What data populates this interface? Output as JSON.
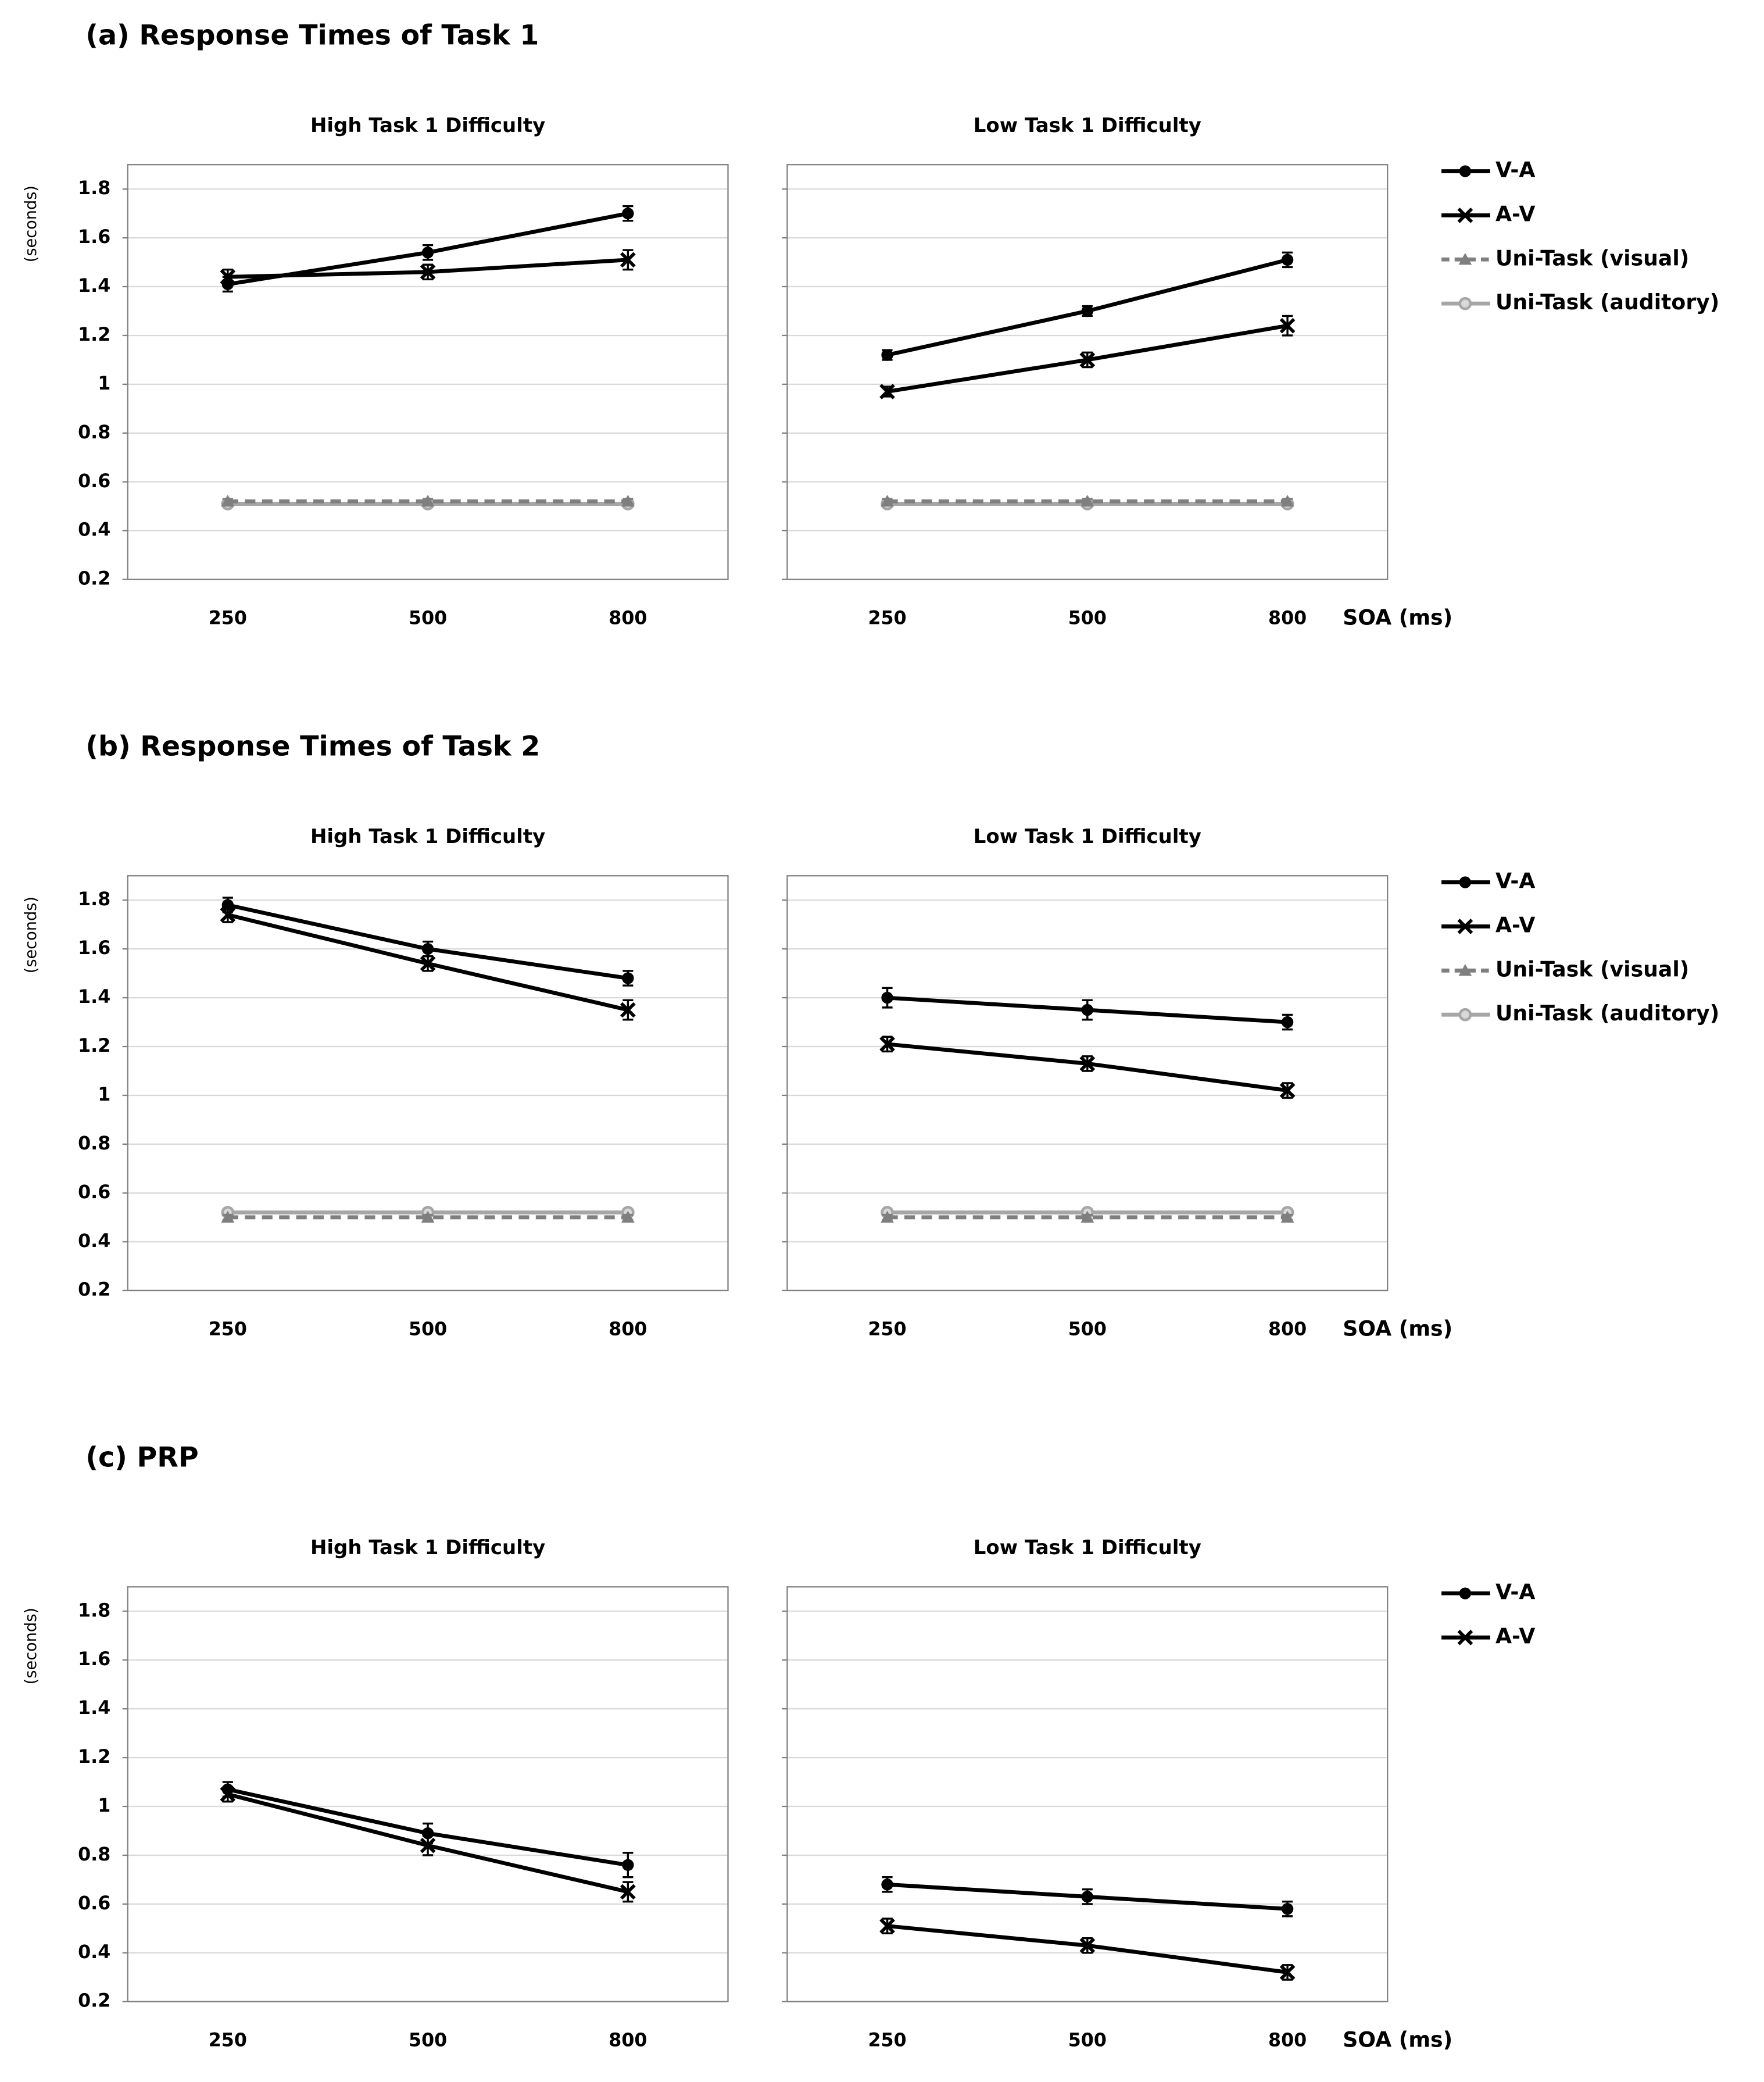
{
  "chart_data": [
    {
      "type": "line",
      "title": "(a) Response Times of Task 1",
      "xlabel": "SOA (ms)",
      "ylabel": "(seconds)",
      "categories": [
        "250",
        "500",
        "800"
      ],
      "ylim": [
        0.2,
        1.9
      ],
      "yticks": [
        0.2,
        0.4,
        0.6,
        0.8,
        1,
        1.2,
        1.4,
        1.6,
        1.8
      ],
      "grid": true,
      "series": [
        {
          "name": "V-A",
          "color": "#000000",
          "marker": "circle",
          "dash": false
        },
        {
          "name": "A-V",
          "color": "#000000",
          "marker": "cross",
          "dash": false
        },
        {
          "name": "Uni-Task (visual)",
          "color": "#7f7f7f",
          "marker": "triangle",
          "dash": true
        },
        {
          "name": "Uni-Task (auditory)",
          "color": "#a6a6a6",
          "marker": "ring",
          "dash": false
        }
      ],
      "panels": [
        {
          "subtitle": "High Task 1 Difficulty",
          "series": [
            {
              "values": [
                1.41,
                1.54,
                1.7
              ],
              "errors": [
                0.03,
                0.03,
                0.03
              ]
            },
            {
              "values": [
                1.44,
                1.46,
                1.51
              ],
              "errors": [
                0.03,
                0.03,
                0.04
              ]
            },
            {
              "values": [
                0.52,
                0.52,
                0.52
              ],
              "errors": [
                0.01,
                0.01,
                0.01
              ]
            },
            {
              "values": [
                0.51,
                0.51,
                0.51
              ],
              "errors": [
                0.01,
                0.01,
                0.01
              ]
            }
          ]
        },
        {
          "subtitle": "Low Task 1 Difficulty",
          "series": [
            {
              "values": [
                1.12,
                1.3,
                1.51
              ],
              "errors": [
                0.02,
                0.02,
                0.03
              ]
            },
            {
              "values": [
                0.97,
                1.1,
                1.24
              ],
              "errors": [
                0.02,
                0.03,
                0.04
              ]
            },
            {
              "values": [
                0.52,
                0.52,
                0.52
              ],
              "errors": [
                0.01,
                0.01,
                0.01
              ]
            },
            {
              "values": [
                0.51,
                0.51,
                0.51
              ],
              "errors": [
                0.01,
                0.01,
                0.01
              ]
            }
          ]
        }
      ]
    },
    {
      "type": "line",
      "title": "(b) Response Times of Task 2",
      "xlabel": "SOA (ms)",
      "ylabel": "(seconds)",
      "categories": [
        "250",
        "500",
        "800"
      ],
      "ylim": [
        0.2,
        1.9
      ],
      "yticks": [
        0.2,
        0.4,
        0.6,
        0.8,
        1,
        1.2,
        1.4,
        1.6,
        1.8
      ],
      "grid": true,
      "series": [
        {
          "name": "V-A",
          "color": "#000000",
          "marker": "circle",
          "dash": false
        },
        {
          "name": "A-V",
          "color": "#000000",
          "marker": "cross",
          "dash": false
        },
        {
          "name": "Uni-Task (visual)",
          "color": "#7f7f7f",
          "marker": "triangle",
          "dash": true
        },
        {
          "name": "Uni-Task (auditory)",
          "color": "#a6a6a6",
          "marker": "ring",
          "dash": false
        }
      ],
      "panels": [
        {
          "subtitle": "High Task 1 Difficulty",
          "series": [
            {
              "values": [
                1.78,
                1.6,
                1.48
              ],
              "errors": [
                0.03,
                0.03,
                0.03
              ]
            },
            {
              "values": [
                1.74,
                1.54,
                1.35
              ],
              "errors": [
                0.03,
                0.03,
                0.04
              ]
            },
            {
              "values": [
                0.5,
                0.5,
                0.5
              ],
              "errors": [
                0.01,
                0.01,
                0.01
              ]
            },
            {
              "values": [
                0.52,
                0.52,
                0.52
              ],
              "errors": [
                0.01,
                0.01,
                0.01
              ]
            }
          ]
        },
        {
          "subtitle": "Low Task 1 Difficulty",
          "series": [
            {
              "values": [
                1.4,
                1.35,
                1.3
              ],
              "errors": [
                0.04,
                0.04,
                0.03
              ]
            },
            {
              "values": [
                1.21,
                1.13,
                1.02
              ],
              "errors": [
                0.03,
                0.03,
                0.03
              ]
            },
            {
              "values": [
                0.5,
                0.5,
                0.5
              ],
              "errors": [
                0.01,
                0.01,
                0.01
              ]
            },
            {
              "values": [
                0.52,
                0.52,
                0.52
              ],
              "errors": [
                0.01,
                0.01,
                0.01
              ]
            }
          ]
        }
      ]
    },
    {
      "type": "line",
      "title": "(c) PRP",
      "xlabel": "SOA (ms)",
      "ylabel": "(seconds)",
      "categories": [
        "250",
        "500",
        "800"
      ],
      "ylim": [
        0.2,
        1.9
      ],
      "yticks": [
        0.2,
        0.4,
        0.6,
        0.8,
        1,
        1.2,
        1.4,
        1.6,
        1.8
      ],
      "grid": true,
      "series": [
        {
          "name": "V-A",
          "color": "#000000",
          "marker": "circle",
          "dash": false
        },
        {
          "name": "A-V",
          "color": "#000000",
          "marker": "cross",
          "dash": false
        }
      ],
      "panels": [
        {
          "subtitle": "High Task 1 Difficulty",
          "series": [
            {
              "values": [
                1.07,
                0.89,
                0.76
              ],
              "errors": [
                0.03,
                0.04,
                0.05
              ]
            },
            {
              "values": [
                1.05,
                0.84,
                0.65
              ],
              "errors": [
                0.03,
                0.04,
                0.04
              ]
            }
          ]
        },
        {
          "subtitle": "Low Task 1 Difficulty",
          "series": [
            {
              "values": [
                0.68,
                0.63,
                0.58
              ],
              "errors": [
                0.03,
                0.03,
                0.03
              ]
            },
            {
              "values": [
                0.51,
                0.43,
                0.32
              ],
              "errors": [
                0.03,
                0.03,
                0.03
              ]
            }
          ]
        }
      ]
    }
  ]
}
